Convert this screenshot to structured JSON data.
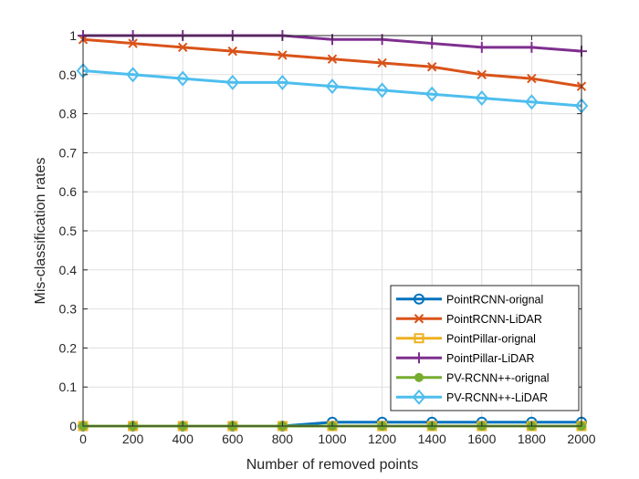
{
  "chart_data": {
    "type": "line",
    "title": "",
    "xlabel": "Number of removed points",
    "ylabel": "Mis-classification rates",
    "xlim": [
      0,
      2000
    ],
    "ylim": [
      0,
      1
    ],
    "x": [
      0,
      200,
      400,
      600,
      800,
      1000,
      1200,
      1400,
      1600,
      1800,
      2000
    ],
    "xticks": [
      "0",
      "200",
      "400",
      "600",
      "800",
      "1000",
      "1200",
      "1400",
      "1600",
      "1800",
      "2000"
    ],
    "yticks": [
      "0",
      "0.1",
      "0.2",
      "0.3",
      "0.4",
      "0.5",
      "0.6",
      "0.7",
      "0.8",
      "0.9",
      "1"
    ],
    "grid": true,
    "legend_position": "bottom-right",
    "series": [
      {
        "name": "PointRCNN-orignal",
        "color": "#0072BD",
        "marker": "circle",
        "values": [
          0,
          0,
          0,
          0,
          0,
          0.01,
          0.01,
          0.01,
          0.01,
          0.01,
          0.01
        ]
      },
      {
        "name": "PointRCNN-LiDAR",
        "color": "#D95319",
        "marker": "cross",
        "values": [
          0.99,
          0.98,
          0.97,
          0.96,
          0.95,
          0.94,
          0.93,
          0.92,
          0.9,
          0.89,
          0.87
        ]
      },
      {
        "name": "PointPillar-orignal",
        "color": "#EDB120",
        "marker": "square",
        "values": [
          0,
          0,
          0,
          0,
          0,
          0,
          0,
          0,
          0,
          0,
          0
        ]
      },
      {
        "name": "PointPillar-LiDAR",
        "color": "#7E2F8E",
        "marker": "plus",
        "values": [
          1.0,
          1.0,
          1.0,
          1.0,
          1.0,
          0.99,
          0.99,
          0.98,
          0.97,
          0.97,
          0.96
        ]
      },
      {
        "name": "PV-RCNN++-orignal",
        "color": "#77AC30",
        "marker": "dot",
        "values": [
          0,
          0,
          0,
          0,
          0,
          0,
          0,
          0,
          0,
          0,
          0
        ]
      },
      {
        "name": "PV-RCNN++-LiDAR",
        "color": "#4DBEEE",
        "marker": "diamond",
        "values": [
          0.91,
          0.9,
          0.89,
          0.88,
          0.88,
          0.87,
          0.86,
          0.85,
          0.84,
          0.83,
          0.82
        ]
      }
    ]
  }
}
